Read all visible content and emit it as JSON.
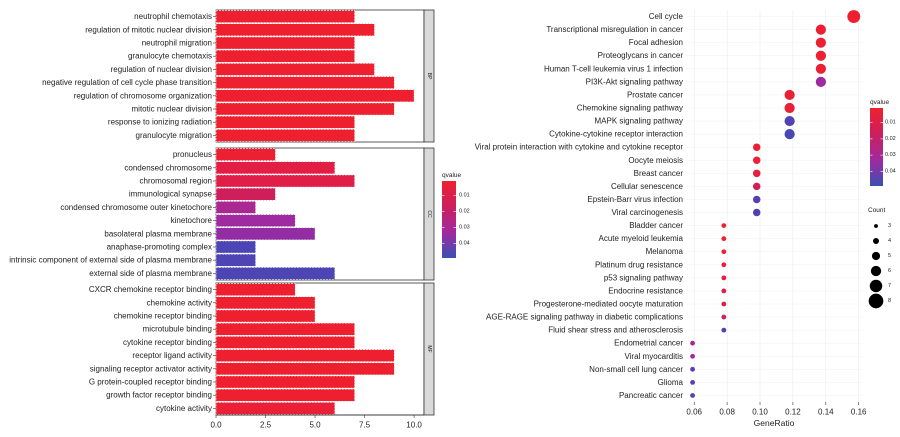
{
  "chart_data": [
    {
      "type": "bar",
      "orientation": "horizontal",
      "x_ticks": [
        "0.0",
        "2.5",
        "5.0",
        "7.5",
        "10.0"
      ],
      "xlim": [
        0,
        10.5
      ],
      "facets": [
        {
          "label": "BP",
          "bars": [
            {
              "term": "neutrophil chemotaxis",
              "count": 7,
              "qvalue": 0.001
            },
            {
              "term": "regulation of mitotic nuclear division",
              "count": 8,
              "qvalue": 0.001
            },
            {
              "term": "neutrophil migration",
              "count": 7,
              "qvalue": 0.001
            },
            {
              "term": "granulocyte chemotaxis",
              "count": 7,
              "qvalue": 0.001
            },
            {
              "term": "regulation of nuclear division",
              "count": 8,
              "qvalue": 0.001
            },
            {
              "term": "negative regulation of cell cycle phase transition",
              "count": 9,
              "qvalue": 0.001
            },
            {
              "term": "regulation of chromosome organization",
              "count": 10,
              "qvalue": 0.001
            },
            {
              "term": "mitotic nuclear division",
              "count": 9,
              "qvalue": 0.001
            },
            {
              "term": "response to ionizing radiation",
              "count": 7,
              "qvalue": 0.001
            },
            {
              "term": "granulocyte migration",
              "count": 7,
              "qvalue": 0.001
            }
          ]
        },
        {
          "label": "CC",
          "bars": [
            {
              "term": "pronucleus",
              "count": 3,
              "qvalue": 0.003
            },
            {
              "term": "condensed chromosome",
              "count": 6,
              "qvalue": 0.012
            },
            {
              "term": "chromosomal region",
              "count": 7,
              "qvalue": 0.013
            },
            {
              "term": "immunological synapse",
              "count": 3,
              "qvalue": 0.019
            },
            {
              "term": "condensed chromosome outer kinetochore",
              "count": 2,
              "qvalue": 0.028
            },
            {
              "term": "kinetochore",
              "count": 4,
              "qvalue": 0.03
            },
            {
              "term": "basolateral plasma membrane",
              "count": 5,
              "qvalue": 0.032
            },
            {
              "term": "anaphase-promoting complex",
              "count": 2,
              "qvalue": 0.045
            },
            {
              "term": "intrinsic component of external side of plasma membrane",
              "count": 2,
              "qvalue": 0.045
            },
            {
              "term": "external side of plasma membrane",
              "count": 6,
              "qvalue": 0.045
            }
          ]
        },
        {
          "label": "MF",
          "bars": [
            {
              "term": "CXCR chemokine receptor binding",
              "count": 4,
              "qvalue": 0.001
            },
            {
              "term": "chemokine activity",
              "count": 5,
              "qvalue": 0.001
            },
            {
              "term": "chemokine receptor binding",
              "count": 5,
              "qvalue": 0.001
            },
            {
              "term": "microtubule binding",
              "count": 7,
              "qvalue": 0.001
            },
            {
              "term": "cytokine receptor binding",
              "count": 7,
              "qvalue": 0.001
            },
            {
              "term": "receptor ligand activity",
              "count": 9,
              "qvalue": 0.001
            },
            {
              "term": "signaling receptor activator activity",
              "count": 9,
              "qvalue": 0.001
            },
            {
              "term": "G protein-coupled receptor binding",
              "count": 7,
              "qvalue": 0.001
            },
            {
              "term": "growth factor receptor binding",
              "count": 7,
              "qvalue": 0.001
            },
            {
              "term": "cytokine activity",
              "count": 6,
              "qvalue": 0.005
            }
          ]
        }
      ],
      "legend": {
        "title": "qvalue",
        "ticks": [
          "0.01",
          "0.02",
          "0.03",
          "0.04"
        ],
        "colors": [
          "#ee2030",
          "#cc1f5e",
          "#a02a9f",
          "#3a4fb4"
        ]
      },
      "bar_border_color": "#ffffff"
    },
    {
      "type": "scatter",
      "xlabel": "GeneRatio",
      "x_ticks": [
        "0.06",
        "0.08",
        "0.10",
        "0.12",
        "0.14",
        "0.16"
      ],
      "xlim": [
        0.055,
        0.162
      ],
      "points": [
        {
          "term": "Cell cycle",
          "gene_ratio": 0.157,
          "count": 6,
          "qvalue": 0.001
        },
        {
          "term": "Transcriptional misregulation in cancer",
          "gene_ratio": 0.137,
          "count": 5,
          "qvalue": 0.003
        },
        {
          "term": "Focal adhesion",
          "gene_ratio": 0.137,
          "count": 5,
          "qvalue": 0.003
        },
        {
          "term": "Proteoglycans in cancer",
          "gene_ratio": 0.137,
          "count": 5,
          "qvalue": 0.003
        },
        {
          "term": "Human T-cell leukemia virus 1 infection",
          "gene_ratio": 0.137,
          "count": 5,
          "qvalue": 0.003
        },
        {
          "term": "PI3K-Akt signaling pathway",
          "gene_ratio": 0.137,
          "count": 5,
          "qvalue": 0.03
        },
        {
          "term": "Prostate cancer",
          "gene_ratio": 0.118,
          "count": 5,
          "qvalue": 0.003
        },
        {
          "term": "Chemokine signaling pathway",
          "gene_ratio": 0.118,
          "count": 5,
          "qvalue": 0.006
        },
        {
          "term": "MAPK signaling pathway",
          "gene_ratio": 0.118,
          "count": 5,
          "qvalue": 0.044
        },
        {
          "term": "Cytokine-cytokine receptor interaction",
          "gene_ratio": 0.118,
          "count": 5,
          "qvalue": 0.046
        },
        {
          "term": "Viral protein interaction with cytokine and cytokine receptor",
          "gene_ratio": 0.098,
          "count": 4,
          "qvalue": 0.004
        },
        {
          "term": "Oocyte meiosis",
          "gene_ratio": 0.098,
          "count": 4,
          "qvalue": 0.006
        },
        {
          "term": "Breast cancer",
          "gene_ratio": 0.098,
          "count": 4,
          "qvalue": 0.01
        },
        {
          "term": "Cellular senescence",
          "gene_ratio": 0.098,
          "count": 4,
          "qvalue": 0.018
        },
        {
          "term": "Epstein-Barr virus infection",
          "gene_ratio": 0.098,
          "count": 4,
          "qvalue": 0.042
        },
        {
          "term": "Viral carcinogenesis",
          "gene_ratio": 0.098,
          "count": 4,
          "qvalue": 0.044
        },
        {
          "term": "Bladder cancer",
          "gene_ratio": 0.078,
          "count": 3,
          "qvalue": 0.003
        },
        {
          "term": "Acute myeloid leukemia",
          "gene_ratio": 0.078,
          "count": 3,
          "qvalue": 0.005
        },
        {
          "term": "Melanoma",
          "gene_ratio": 0.078,
          "count": 3,
          "qvalue": 0.006
        },
        {
          "term": "Platinum drug resistance",
          "gene_ratio": 0.078,
          "count": 3,
          "qvalue": 0.008
        },
        {
          "term": "p53 signaling pathway",
          "gene_ratio": 0.078,
          "count": 3,
          "qvalue": 0.01
        },
        {
          "term": "Endocrine resistance",
          "gene_ratio": 0.078,
          "count": 3,
          "qvalue": 0.014
        },
        {
          "term": "Progesterone-mediated oocyte maturation",
          "gene_ratio": 0.078,
          "count": 3,
          "qvalue": 0.016
        },
        {
          "term": "AGE-RAGE signaling pathway in diabetic complications",
          "gene_ratio": 0.078,
          "count": 3,
          "qvalue": 0.018
        },
        {
          "term": "Fluid shear stress and atherosclerosis",
          "gene_ratio": 0.078,
          "count": 3,
          "qvalue": 0.044
        },
        {
          "term": "Endometrial cancer",
          "gene_ratio": 0.059,
          "count": 3,
          "qvalue": 0.028
        },
        {
          "term": "Viral myocarditis",
          "gene_ratio": 0.059,
          "count": 3,
          "qvalue": 0.03
        },
        {
          "term": "Non-small cell lung cancer",
          "gene_ratio": 0.059,
          "count": 3,
          "qvalue": 0.04
        },
        {
          "term": "Glioma",
          "gene_ratio": 0.059,
          "count": 3,
          "qvalue": 0.044
        },
        {
          "term": "Pancreatic cancer",
          "gene_ratio": 0.059,
          "count": 3,
          "qvalue": 0.046
        }
      ],
      "color_legend": {
        "title": "qvalue",
        "ticks": [
          "0.01",
          "0.02",
          "0.03",
          "0.04"
        ],
        "colors": [
          "#ee2030",
          "#cc1f5e",
          "#a02a9f",
          "#3a4fb4"
        ]
      },
      "size_legend": {
        "title": "Count",
        "values": [
          3,
          4,
          5,
          6,
          7,
          8
        ],
        "labels": [
          "3",
          "4",
          "5",
          "6",
          "7",
          "8"
        ]
      },
      "panel_background": "#ffffff",
      "grid": true
    }
  ]
}
